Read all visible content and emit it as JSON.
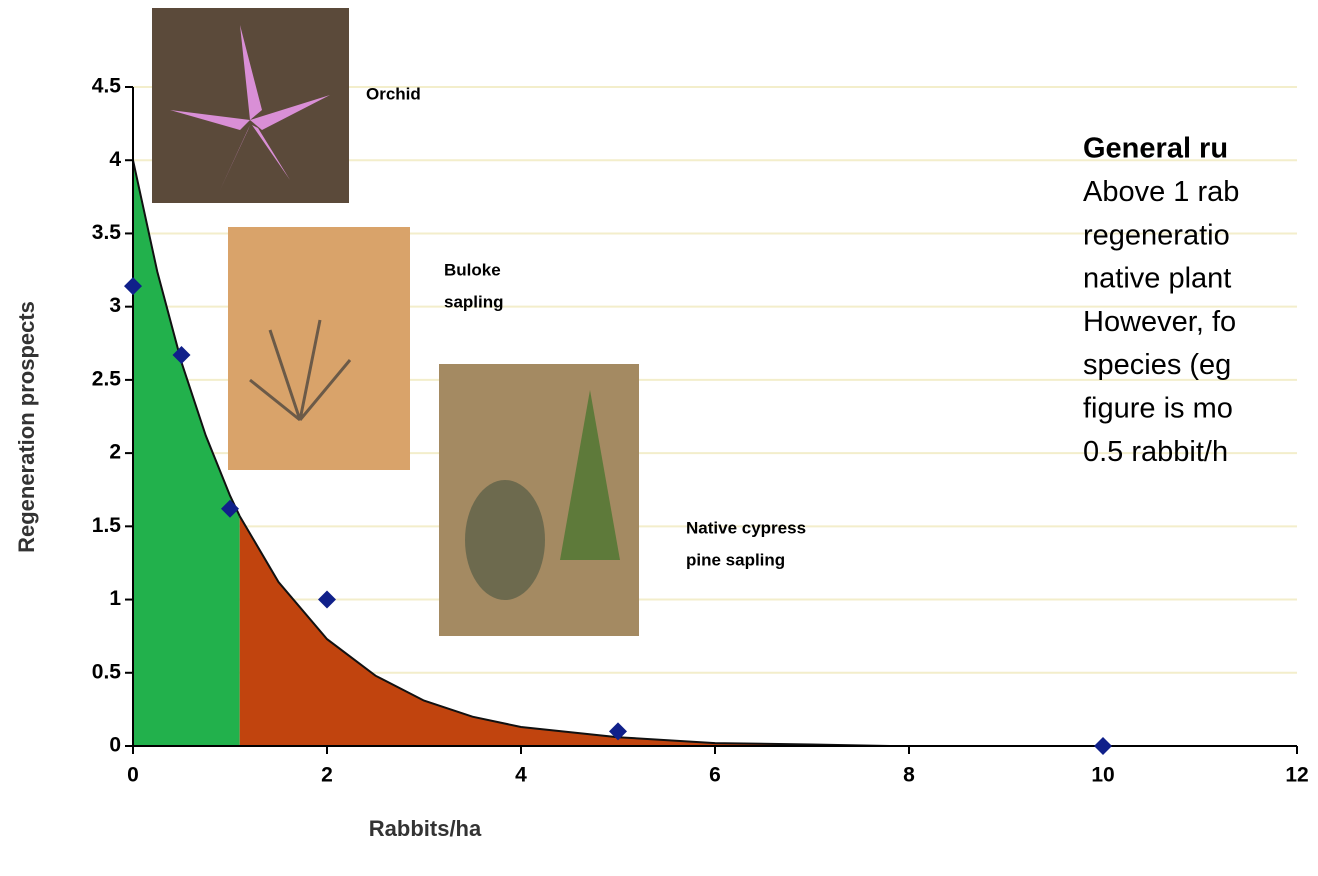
{
  "chart_data": {
    "type": "scatter",
    "xlabel": "Rabbits/ha",
    "ylabel": "Regeneration prospects",
    "xlim": [
      0,
      12
    ],
    "xticks": [
      0,
      2,
      4,
      6,
      8,
      10,
      12
    ],
    "ylim": [
      0,
      4.5
    ],
    "yticks": [
      0,
      0.5,
      1,
      1.5,
      2,
      2.5,
      3,
      3.5,
      4,
      4.5
    ],
    "grid": true,
    "grid_color": "#f3eecb",
    "points": {
      "color": "#10208a",
      "x": [
        0,
        0.5,
        1,
        2,
        5,
        10
      ],
      "values": [
        3.14,
        2.67,
        1.62,
        1.0,
        0.1,
        0
      ]
    },
    "areas": [
      {
        "color": "#22b14c",
        "x": [
          0,
          0.25,
          0.5,
          0.75,
          1,
          1.1
        ],
        "values": [
          4,
          3.24,
          2.62,
          2.12,
          1.71,
          1.57
        ]
      },
      {
        "color": "#c1440e",
        "x": [
          1.1,
          1.5,
          2,
          2.5,
          3,
          3.5,
          4,
          5,
          6,
          7,
          7.8
        ],
        "values": [
          1.57,
          1.12,
          0.73,
          0.48,
          0.31,
          0.2,
          0.13,
          0.06,
          0.02,
          0.01,
          0
        ]
      }
    ],
    "annotations": {
      "orchid": "Orchid",
      "buloke": [
        "Buloke",
        "sapling"
      ],
      "cypress": [
        "Native cypress",
        "pine sapling"
      ],
      "note": [
        "General ru",
        "Above 1 rab",
        "regeneratio",
        "native plant",
        "However, fo",
        "species (eg",
        "figure is mo",
        "0.5 rabbit/h"
      ]
    }
  }
}
